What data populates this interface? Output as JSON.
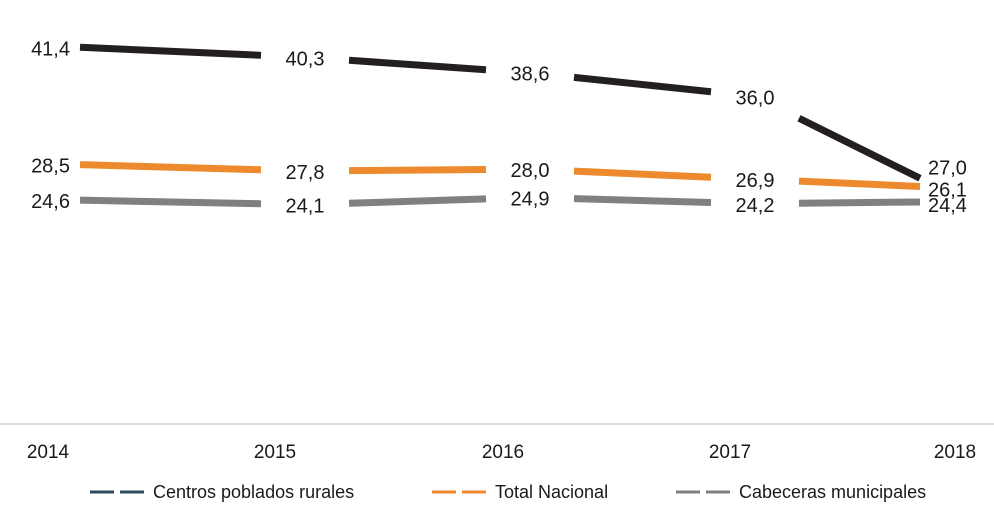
{
  "chart_data": {
    "type": "line",
    "title": "",
    "xlabel": "",
    "ylabel": "",
    "x": [
      "2014",
      "2015",
      "2016",
      "2017",
      "2018"
    ],
    "ylim": [
      0,
      45
    ],
    "grid": false,
    "legend_position": "bottom",
    "series": [
      {
        "name": "Centros poblados rurales",
        "color": "#231f20",
        "legend_color": "#2e4a5e",
        "values": [
          41.4,
          40.3,
          38.6,
          36.0,
          27.0
        ],
        "labels": [
          "41,4",
          "40,3",
          "38,6",
          "36,0",
          "27,0"
        ]
      },
      {
        "name": "Total Nacional",
        "color": "#ee8a2e",
        "legend_color": "#ee8a2e",
        "values": [
          28.5,
          27.8,
          28.0,
          26.9,
          26.1
        ],
        "labels": [
          "28,5",
          "27,8",
          "28,0",
          "26,9",
          "26,1"
        ]
      },
      {
        "name": "Cabeceras municipales",
        "color": "#808080",
        "legend_color": "#808080",
        "values": [
          24.6,
          24.1,
          24.9,
          24.2,
          24.4
        ],
        "labels": [
          "24,6",
          "24,1",
          "24,9",
          "24,2",
          "24,4"
        ]
      }
    ]
  }
}
